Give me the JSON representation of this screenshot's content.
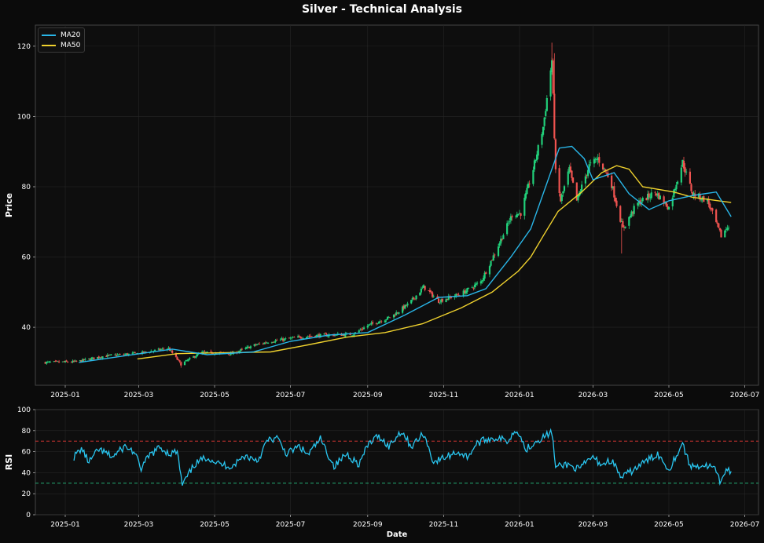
{
  "title": "Silver - Technical Analysis",
  "colors": {
    "background": "#0b0b0b",
    "ma20": "#29b6e8",
    "ma50": "#f0d22e",
    "rsi": "#29c6f0",
    "candle_up": "#21d07a",
    "candle_down": "#ef5350",
    "overbought": "#e53935",
    "oversold": "#26c281"
  },
  "legend": {
    "position": "top-left",
    "items": [
      {
        "label": "MA20",
        "color": "#29b6e8"
      },
      {
        "label": "MA50",
        "color": "#f0d22e"
      }
    ]
  },
  "chart_data": [
    {
      "type": "candlestick",
      "ylabel": "Price",
      "ylim": [
        23.5,
        126
      ],
      "yticks": [
        40,
        60,
        80,
        100,
        120
      ],
      "grid": true,
      "xlim": [
        "2024-12-08",
        "2026-07-12"
      ],
      "xticks": [
        "2025-01",
        "2025-03",
        "2025-05",
        "2025-07",
        "2025-09",
        "2025-11",
        "2026-01",
        "2026-03",
        "2026-05",
        "2026-07"
      ],
      "close_keypoints": [
        [
          "2024-12-16",
          30.0
        ],
        [
          "2025-01-10",
          30.2
        ],
        [
          "2025-02-01",
          31.8
        ],
        [
          "2025-03-01",
          32.6
        ],
        [
          "2025-03-25",
          34.0
        ],
        [
          "2025-04-04",
          29.5
        ],
        [
          "2025-04-20",
          32.8
        ],
        [
          "2025-05-15",
          32.5
        ],
        [
          "2025-06-01",
          34.8
        ],
        [
          "2025-06-15",
          36.0
        ],
        [
          "2025-07-15",
          37.5
        ],
        [
          "2025-08-01",
          37.8
        ],
        [
          "2025-08-20",
          38.0
        ],
        [
          "2025-09-01",
          40.5
        ],
        [
          "2025-09-20",
          43.0
        ],
        [
          "2025-10-05",
          47.0
        ],
        [
          "2025-10-16",
          51.5
        ],
        [
          "2025-10-28",
          47.5
        ],
        [
          "2025-11-15",
          49.5
        ],
        [
          "2025-12-01",
          53.0
        ],
        [
          "2025-12-12",
          61.0
        ],
        [
          "2025-12-26",
          72.0
        ],
        [
          "2026-01-02",
          72.5
        ],
        [
          "2026-01-12",
          85.0
        ],
        [
          "2026-01-20",
          97.0
        ],
        [
          "2026-01-27",
          116.0
        ],
        [
          "2026-01-30",
          84.0
        ],
        [
          "2026-02-03",
          76.0
        ],
        [
          "2026-02-10",
          85.0
        ],
        [
          "2026-02-16",
          76.0
        ],
        [
          "2026-02-26",
          86.0
        ],
        [
          "2026-03-05",
          88.0
        ],
        [
          "2026-03-15",
          82.0
        ],
        [
          "2026-03-25",
          68.0
        ],
        [
          "2026-04-05",
          75.0
        ],
        [
          "2026-04-20",
          78.5
        ],
        [
          "2026-05-01",
          74.0
        ],
        [
          "2026-05-12",
          87.0
        ],
        [
          "2026-05-20",
          78.0
        ],
        [
          "2026-06-01",
          76.0
        ],
        [
          "2026-06-12",
          66.0
        ],
        [
          "2026-06-18",
          69.0
        ]
      ],
      "ma20": [
        [
          "2025-01-12",
          30.0
        ],
        [
          "2025-02-20",
          32.0
        ],
        [
          "2025-03-28",
          33.8
        ],
        [
          "2025-04-25",
          32.2
        ],
        [
          "2025-06-01",
          33.0
        ],
        [
          "2025-07-01",
          36.0
        ],
        [
          "2025-08-01",
          37.8
        ],
        [
          "2025-09-01",
          38.5
        ],
        [
          "2025-10-01",
          43.5
        ],
        [
          "2025-10-28",
          48.5
        ],
        [
          "2025-11-20",
          49.0
        ],
        [
          "2025-12-05",
          51.0
        ],
        [
          "2025-12-25",
          60.0
        ],
        [
          "2026-01-10",
          68.0
        ],
        [
          "2026-01-22",
          80.0
        ],
        [
          "2026-02-02",
          91.0
        ],
        [
          "2026-02-12",
          91.5
        ],
        [
          "2026-02-22",
          88.0
        ],
        [
          "2026-03-01",
          82.0
        ],
        [
          "2026-03-18",
          84.0
        ],
        [
          "2026-03-30",
          78.0
        ],
        [
          "2026-04-15",
          73.5
        ],
        [
          "2026-05-01",
          76.0
        ],
        [
          "2026-05-20",
          77.5
        ],
        [
          "2026-06-08",
          78.5
        ],
        [
          "2026-06-20",
          71.5
        ]
      ],
      "ma50": [
        [
          "2025-02-28",
          31.0
        ],
        [
          "2025-04-01",
          32.5
        ],
        [
          "2025-05-10",
          32.8
        ],
        [
          "2025-06-15",
          33.0
        ],
        [
          "2025-07-15",
          35.0
        ],
        [
          "2025-08-15",
          37.2
        ],
        [
          "2025-09-15",
          38.5
        ],
        [
          "2025-10-15",
          41.0
        ],
        [
          "2025-11-15",
          45.5
        ],
        [
          "2025-12-10",
          50.0
        ],
        [
          "2025-12-31",
          56.0
        ],
        [
          "2026-01-10",
          60.0
        ],
        [
          "2026-01-20",
          66.0
        ],
        [
          "2026-02-01",
          73.0
        ],
        [
          "2026-02-20",
          78.5
        ],
        [
          "2026-03-08",
          84.0
        ],
        [
          "2026-03-20",
          86.0
        ],
        [
          "2026-03-30",
          85.0
        ],
        [
          "2026-04-10",
          80.0
        ],
        [
          "2026-05-05",
          78.5
        ],
        [
          "2026-05-20",
          77.0
        ],
        [
          "2026-06-10",
          76.0
        ],
        [
          "2026-06-20",
          75.5
        ]
      ]
    },
    {
      "type": "line",
      "xlabel": "Date",
      "ylabel": "RSI",
      "ylim": [
        0,
        100
      ],
      "yticks": [
        0,
        20,
        40,
        60,
        80,
        100
      ],
      "reference_lines": [
        70,
        30
      ],
      "grid": true,
      "series": [
        {
          "values": [
            [
              "2025-01-08",
              55
            ],
            [
              "2025-01-14",
              63
            ],
            [
              "2025-01-20",
              50
            ],
            [
              "2025-01-28",
              62
            ],
            [
              "2025-02-08",
              55
            ],
            [
              "2025-02-18",
              65
            ],
            [
              "2025-02-25",
              60
            ],
            [
              "2025-03-03",
              44
            ],
            [
              "2025-03-10",
              57
            ],
            [
              "2025-03-18",
              64
            ],
            [
              "2025-03-26",
              58
            ],
            [
              "2025-04-01",
              60
            ],
            [
              "2025-04-05",
              28
            ],
            [
              "2025-04-15",
              48
            ],
            [
              "2025-04-25",
              55
            ],
            [
              "2025-05-05",
              48
            ],
            [
              "2025-05-15",
              46
            ],
            [
              "2025-05-25",
              56
            ],
            [
              "2025-06-05",
              52
            ],
            [
              "2025-06-12",
              70
            ],
            [
              "2025-06-20",
              73
            ],
            [
              "2025-06-28",
              58
            ],
            [
              "2025-07-08",
              65
            ],
            [
              "2025-07-15",
              57
            ],
            [
              "2025-07-25",
              72
            ],
            [
              "2025-08-05",
              46
            ],
            [
              "2025-08-15",
              58
            ],
            [
              "2025-08-25",
              48
            ],
            [
              "2025-09-02",
              68
            ],
            [
              "2025-09-10",
              75
            ],
            [
              "2025-09-18",
              65
            ],
            [
              "2025-09-28",
              80
            ],
            [
              "2025-10-06",
              65
            ],
            [
              "2025-10-16",
              77
            ],
            [
              "2025-10-24",
              50
            ],
            [
              "2025-11-03",
              55
            ],
            [
              "2025-11-12",
              60
            ],
            [
              "2025-11-20",
              55
            ],
            [
              "2025-11-28",
              68
            ],
            [
              "2025-12-06",
              72
            ],
            [
              "2025-12-14",
              73
            ],
            [
              "2025-12-22",
              70
            ],
            [
              "2025-12-30",
              82
            ],
            [
              "2026-01-06",
              62
            ],
            [
              "2026-01-14",
              70
            ],
            [
              "2026-01-22",
              75
            ],
            [
              "2026-01-27",
              79
            ],
            [
              "2026-01-30",
              45
            ],
            [
              "2026-02-08",
              48
            ],
            [
              "2026-02-18",
              43
            ],
            [
              "2026-02-28",
              55
            ],
            [
              "2026-03-08",
              48
            ],
            [
              "2026-03-16",
              52
            ],
            [
              "2026-03-24",
              35
            ],
            [
              "2026-04-04",
              44
            ],
            [
              "2026-04-14",
              52
            ],
            [
              "2026-04-22",
              58
            ],
            [
              "2026-05-01",
              43
            ],
            [
              "2026-05-12",
              68
            ],
            [
              "2026-05-18",
              46
            ],
            [
              "2026-05-28",
              47
            ],
            [
              "2026-06-06",
              45
            ],
            [
              "2026-06-12",
              29
            ],
            [
              "2026-06-16",
              45
            ],
            [
              "2026-06-20",
              40
            ]
          ]
        }
      ]
    }
  ]
}
